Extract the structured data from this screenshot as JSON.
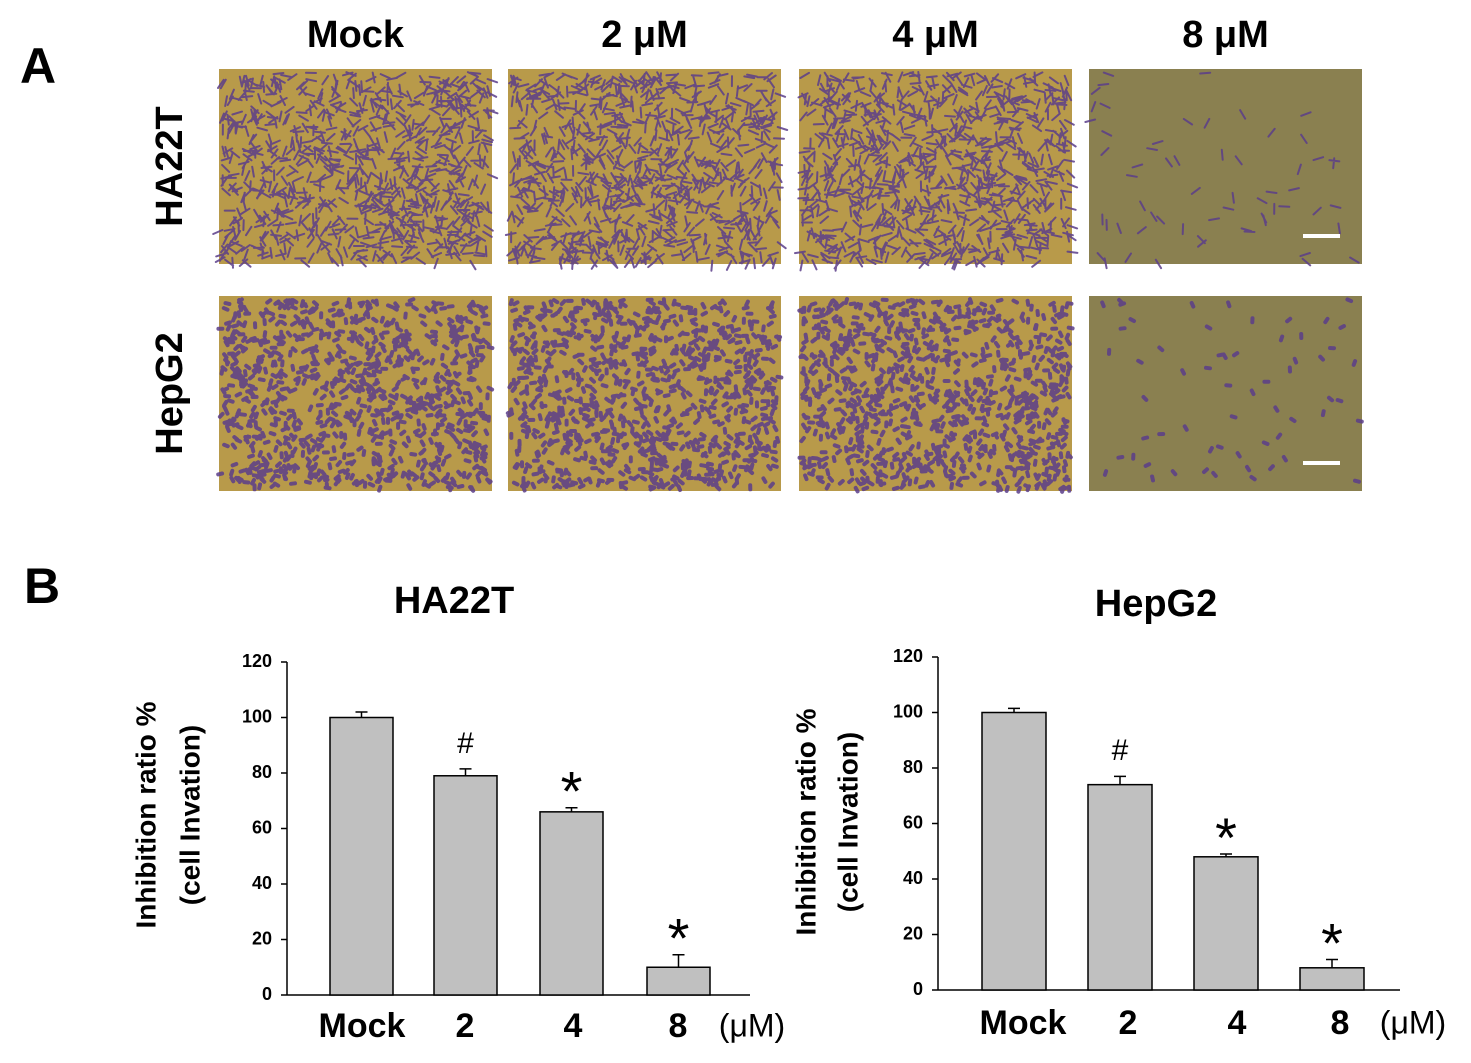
{
  "panel_labels": [
    "A",
    "B"
  ],
  "panel_a": {
    "columns": [
      "Mock",
      "2 μM",
      "4 μM",
      "8 μM"
    ],
    "rows": [
      "HA22T",
      "HepG2"
    ]
  },
  "chart_data": [
    {
      "type": "bar",
      "title": "HA22T",
      "y_label": [
        "Inhibition ratio %",
        "(cell Invation)"
      ],
      "categories": [
        "Mock",
        "2",
        "4",
        "8"
      ],
      "x_unit": "(μM)",
      "values": [
        100,
        79,
        66,
        10
      ],
      "errors": [
        2,
        2.5,
        1.5,
        4.5
      ],
      "annotations": [
        null,
        "#",
        "*",
        "*"
      ],
      "color": "#c0c0c0",
      "ylim": [
        0,
        120
      ],
      "yticks": [
        0,
        20,
        40,
        60,
        80,
        100,
        120
      ]
    },
    {
      "type": "bar",
      "title": "HepG2",
      "y_label": [
        "Inhibition ratio %",
        "(cell Invation)"
      ],
      "categories": [
        "Mock",
        "2",
        "4",
        "8"
      ],
      "x_unit": "(μM)",
      "values": [
        100,
        74,
        48,
        8
      ],
      "errors": [
        1.5,
        3,
        1,
        3
      ],
      "annotations": [
        null,
        "#",
        "*",
        "*"
      ],
      "color": "#c0c0c0",
      "ylim": [
        0,
        120
      ],
      "yticks": [
        0,
        20,
        40,
        60,
        80,
        100,
        120
      ]
    }
  ]
}
